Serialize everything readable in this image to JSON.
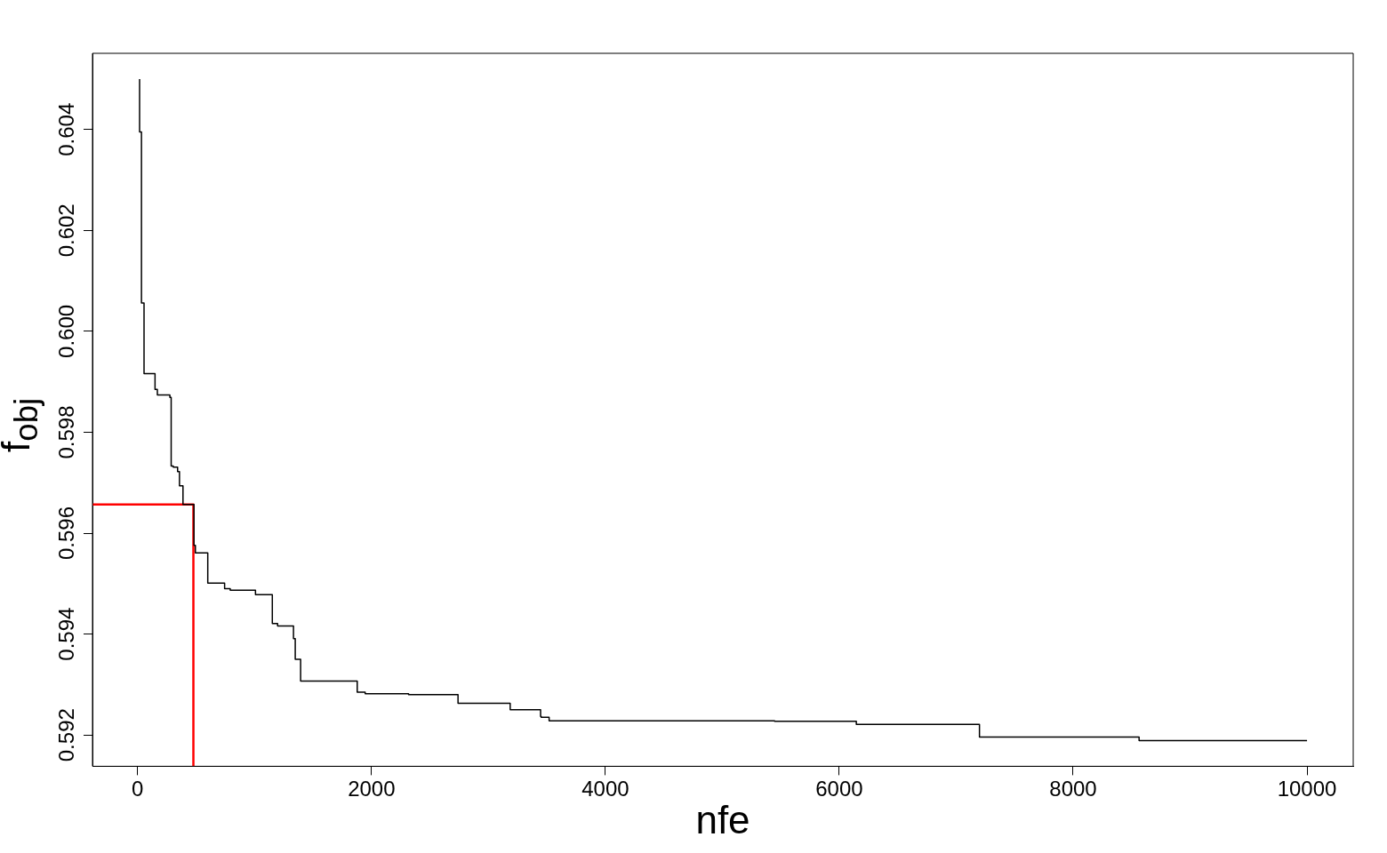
{
  "chart_data": {
    "type": "step",
    "xlabel": "nfe",
    "ylabel": "f$_{obj}$",
    "xlim": [
      -386,
      10395
    ],
    "xticks": [
      0,
      2000,
      4000,
      6000,
      8000,
      10000
    ],
    "ylim": [
      0.59138,
      0.60551
    ],
    "yticks": [
      0.592,
      0.594,
      0.596,
      0.598,
      {
        "value": 0.6,
        "label": "0.600"
      },
      0.602,
      0.604
    ],
    "grid": false,
    "legend": false,
    "series": [
      {
        "color": "#000000",
        "x": [
          17,
          17,
          33,
          55,
          149,
          169,
          276,
          287,
          305,
          342,
          358,
          388,
          482,
          494,
          600,
          744,
          792,
          1008,
          1152,
          1197,
          1333,
          1348,
          1394,
          1878,
          1946,
          2317,
          2740,
          3186,
          3446,
          3451,
          3519,
          5447,
          6146,
          7199,
          8564,
          9333,
          10000
        ],
        "values": [
          0.605,
          0.60427,
          0.60395,
          0.60056,
          0.59916,
          0.59885,
          0.59874,
          0.59869,
          0.59733,
          0.59731,
          0.59722,
          0.59694,
          0.59657,
          0.59576,
          0.59561,
          0.59501,
          0.5949,
          0.59487,
          0.59478,
          0.59421,
          0.59416,
          0.59391,
          0.5935,
          0.59307,
          0.59285,
          0.59282,
          0.5928,
          0.59263,
          0.5925,
          0.59237,
          0.59235,
          0.59228,
          0.59227,
          0.59221,
          0.59196,
          0.59189,
          0.59189
        ]
      },
      {
        "type": "line",
        "color": "#ff0000",
        "x": [
          -386,
          477,
          477
        ],
        "values": [
          0.59657,
          0.59657,
          0.59138
        ]
      }
    ]
  }
}
